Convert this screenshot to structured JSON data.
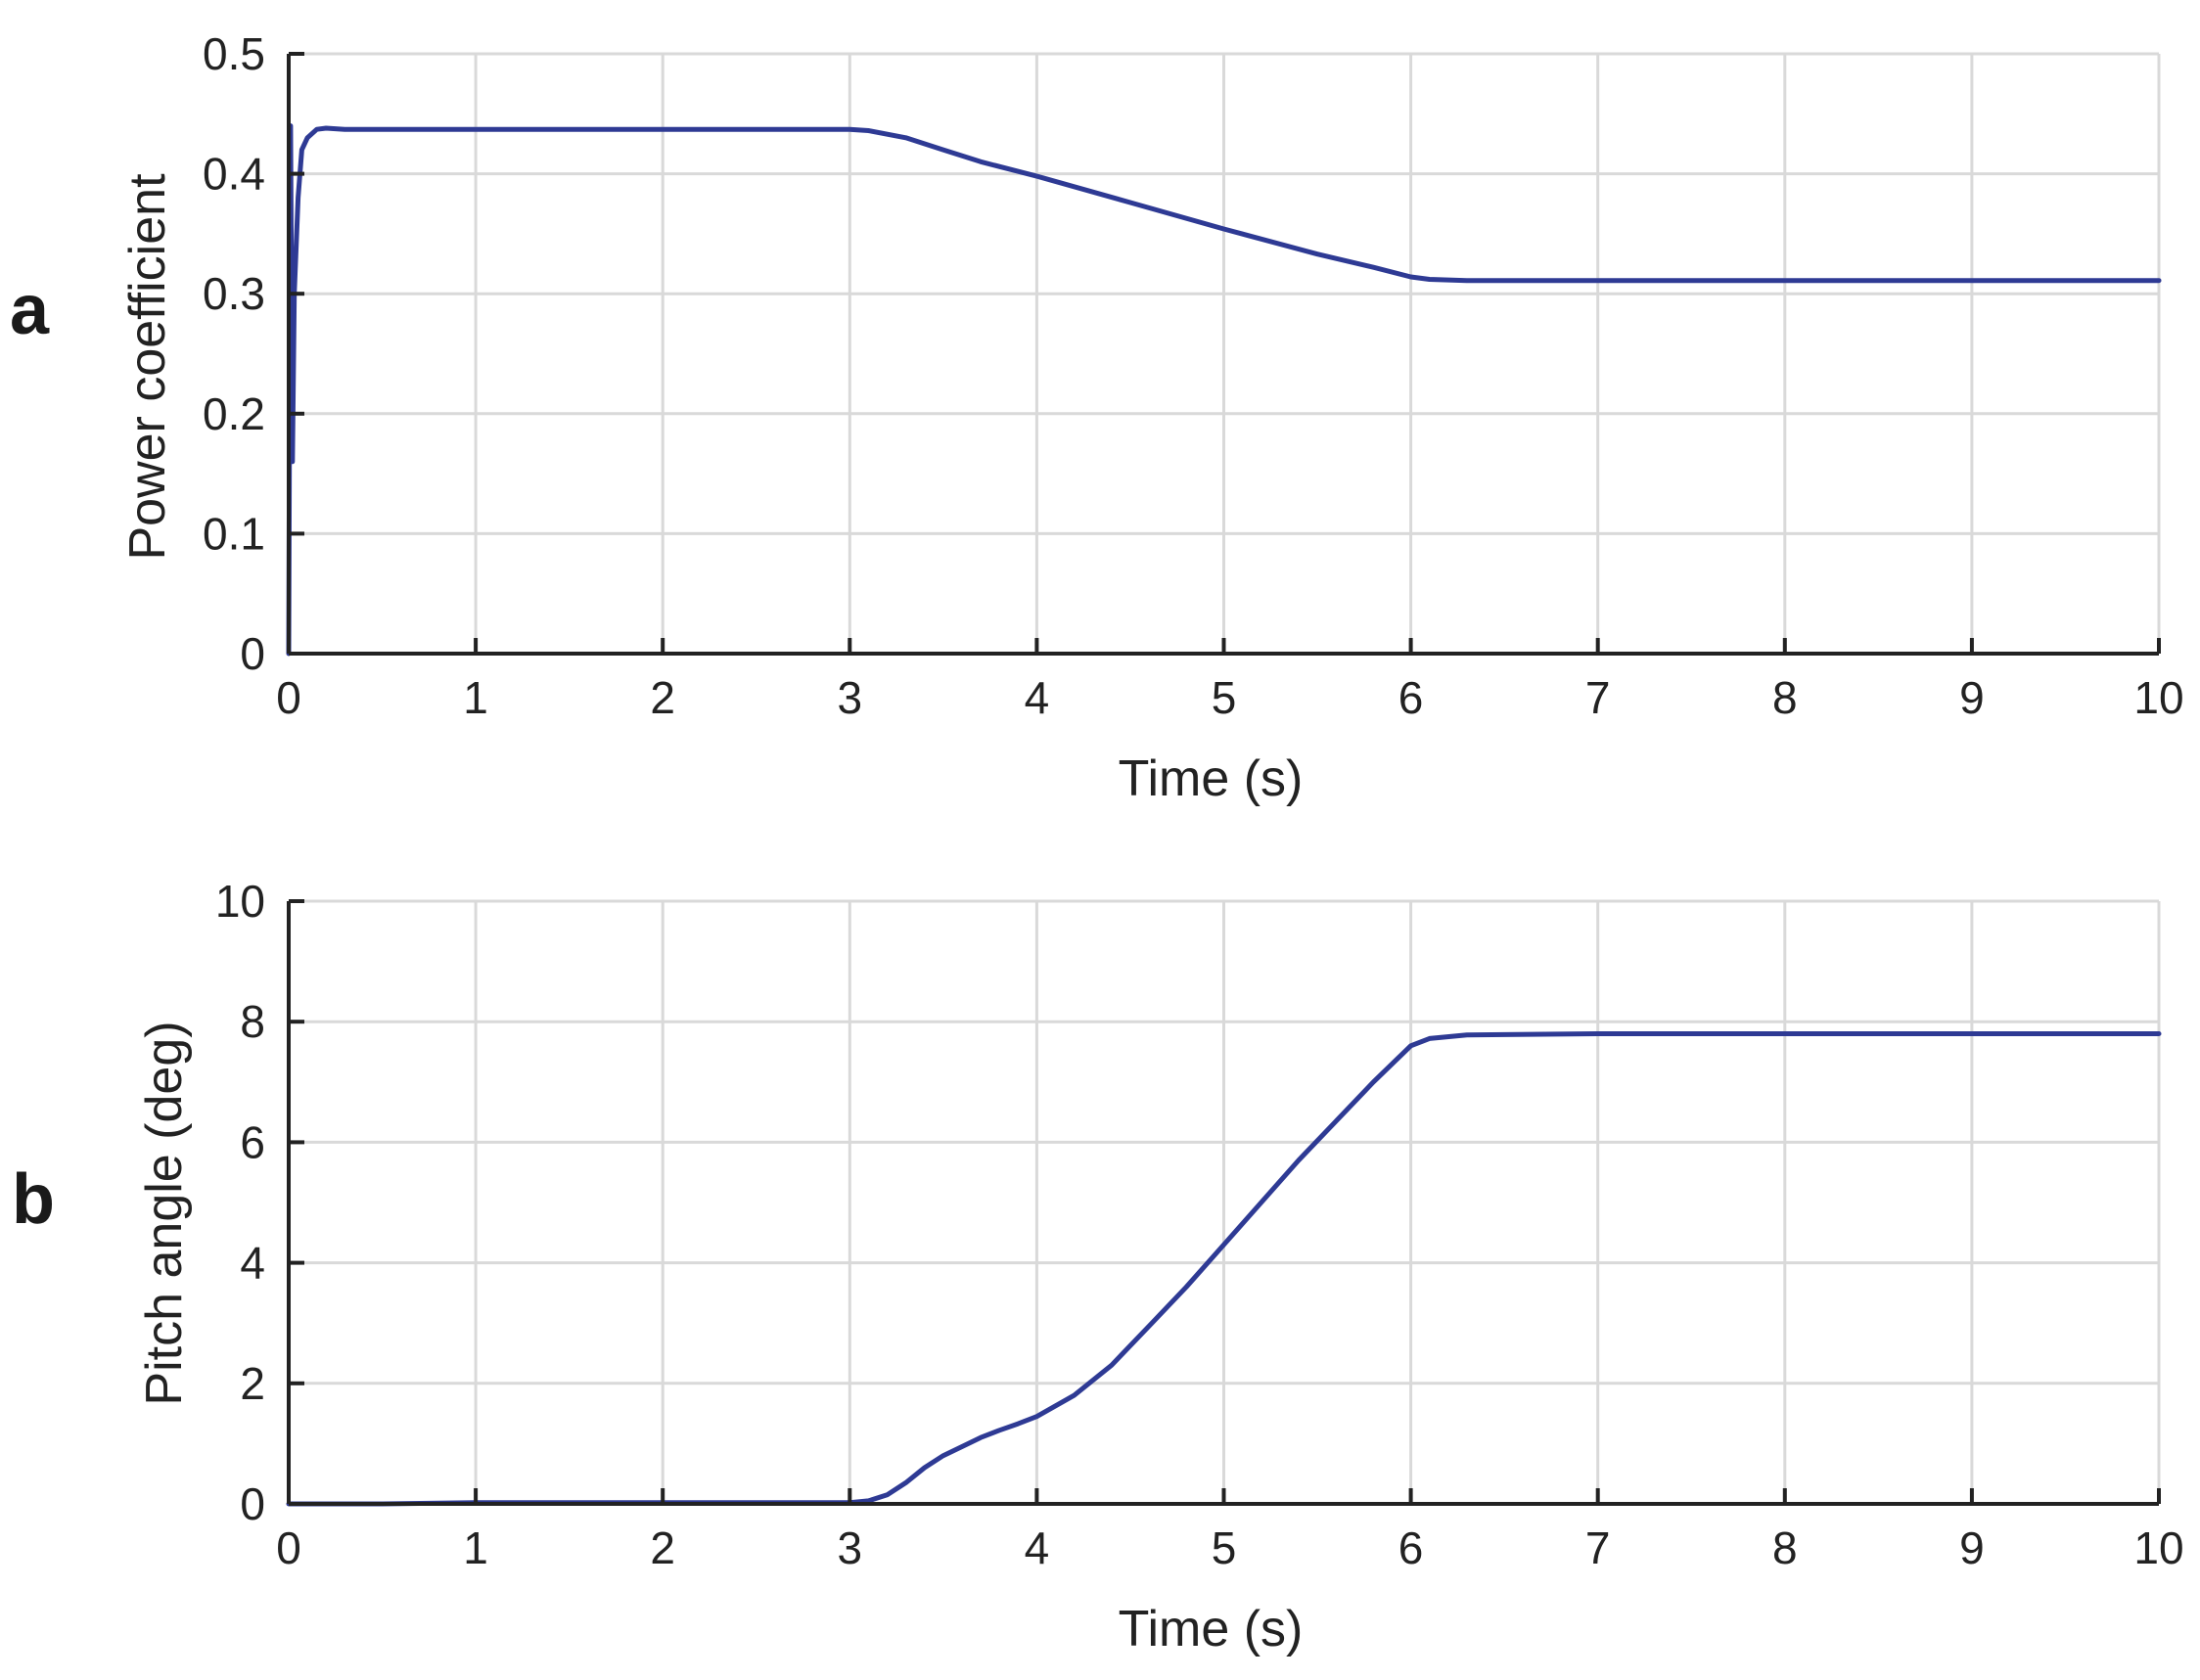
{
  "chart_data": [
    {
      "panel_label": "a",
      "type": "line",
      "xlabel": "Time (s)",
      "ylabel": "Power coefficient",
      "xlim": [
        0,
        10
      ],
      "ylim": [
        0,
        0.5
      ],
      "xticks": [
        0,
        1,
        2,
        3,
        4,
        5,
        6,
        7,
        8,
        9,
        10
      ],
      "yticks": [
        0,
        0.1,
        0.2,
        0.3,
        0.4,
        0.5
      ],
      "xtick_labels": [
        "0",
        "1",
        "2",
        "3",
        "4",
        "5",
        "6",
        "7",
        "8",
        "9",
        "10"
      ],
      "ytick_labels": [
        "0",
        "0.1",
        "0.2",
        "0.3",
        "0.4",
        "0.5"
      ],
      "grid": true,
      "series": [
        {
          "color": "#2e3a94",
          "x": [
            0,
            0.01,
            0.02,
            0.03,
            0.05,
            0.07,
            0.1,
            0.15,
            0.2,
            0.3,
            0.5,
            1,
            2,
            3,
            3.1,
            3.3,
            3.5,
            3.7,
            4,
            4.5,
            5,
            5.5,
            5.8,
            6,
            6.1,
            6.3,
            7,
            8,
            9,
            10
          ],
          "y": [
            0,
            0.44,
            0.16,
            0.3,
            0.38,
            0.42,
            0.43,
            0.437,
            0.438,
            0.437,
            0.437,
            0.437,
            0.437,
            0.437,
            0.436,
            0.43,
            0.42,
            0.41,
            0.398,
            0.376,
            0.354,
            0.333,
            0.322,
            0.314,
            0.312,
            0.311,
            0.311,
            0.311,
            0.311,
            0.311
          ]
        }
      ]
    },
    {
      "panel_label": "b",
      "type": "line",
      "xlabel": "Time (s)",
      "ylabel": "Pitch angle (deg)",
      "xlim": [
        0,
        10
      ],
      "ylim": [
        0,
        10
      ],
      "xticks": [
        0,
        1,
        2,
        3,
        4,
        5,
        6,
        7,
        8,
        9,
        10
      ],
      "yticks": [
        0,
        2,
        4,
        6,
        8,
        10
      ],
      "xtick_labels": [
        "0",
        "1",
        "2",
        "3",
        "4",
        "5",
        "6",
        "7",
        "8",
        "9",
        "10"
      ],
      "ytick_labels": [
        "0",
        "2",
        "4",
        "6",
        "8",
        "10"
      ],
      "grid": true,
      "series": [
        {
          "color": "#2e3a94",
          "x": [
            0,
            0.5,
            1,
            2,
            3,
            3.1,
            3.2,
            3.3,
            3.4,
            3.5,
            3.6,
            3.7,
            3.8,
            3.9,
            4,
            4.2,
            4.4,
            4.6,
            4.8,
            5,
            5.2,
            5.4,
            5.6,
            5.8,
            6,
            6.1,
            6.3,
            7,
            8,
            9,
            10
          ],
          "y": [
            0,
            0,
            0.02,
            0.02,
            0.02,
            0.05,
            0.15,
            0.35,
            0.6,
            0.8,
            0.95,
            1.1,
            1.22,
            1.33,
            1.45,
            1.8,
            2.3,
            2.95,
            3.6,
            4.3,
            5.0,
            5.7,
            6.35,
            7.0,
            7.6,
            7.72,
            7.78,
            7.8,
            7.8,
            7.8,
            7.8
          ]
        }
      ]
    }
  ]
}
